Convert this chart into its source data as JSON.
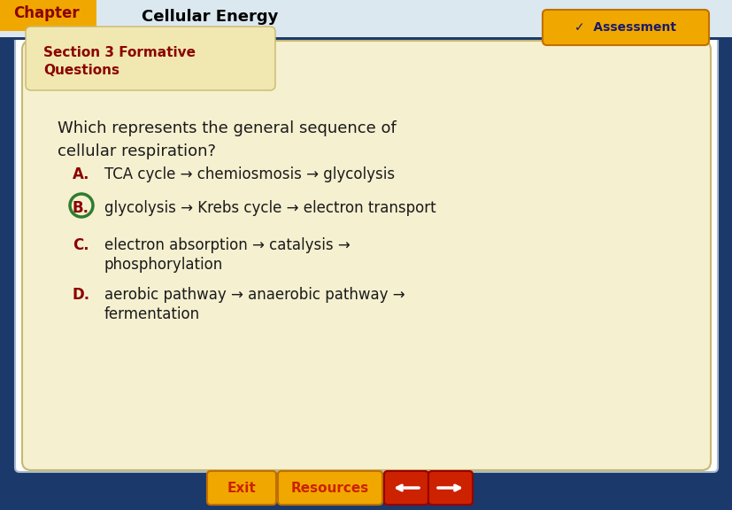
{
  "background_color": "#1b3a6b",
  "chapter_tab_color": "#f0a800",
  "chapter_tab_text": "Chapter",
  "chapter_tab_text_color": "#8b0000",
  "header_bg_color": "#dce8f0",
  "header_text": "Cellular Energy",
  "header_text_color": "#000000",
  "section_tab_color": "#f0e8b0",
  "section_tab_text_line1": "Section 3 Formative",
  "section_tab_text_line2": "Questions",
  "section_tab_text_color": "#8b0000",
  "main_card_color": "#f5f0d0",
  "main_card_edge_color": "#c8b870",
  "question_text_line1": "Which represents the general sequence of",
  "question_text_line2": "cellular respiration?",
  "question_text_color": "#1a1a1a",
  "options": [
    {
      "label": "A.",
      "text": "TCA cycle → chemiosmosis → glycolysis",
      "circled": false,
      "wrap": false
    },
    {
      "label": "B.",
      "text": "glycolysis → Krebs cycle → electron transport",
      "circled": true,
      "wrap": false
    },
    {
      "label": "C.",
      "text": "electron absorption → catalysis →",
      "text2": "phosphorylation",
      "circled": false,
      "wrap": true
    },
    {
      "label": "D.",
      "text": "aerobic pathway → anaerobic pathway →",
      "text2": "fermentation",
      "circled": false,
      "wrap": true
    }
  ],
  "option_label_color": "#8b0000",
  "option_text_color": "#1a1a1a",
  "circle_color": "#2e7d2e",
  "assessment_btn_color": "#f0a800",
  "assessment_text": "✓  Assessment",
  "assessment_text_color": "#1a1a6b",
  "exit_text": "Exit",
  "resources_text": "Resources",
  "btn_color": "#f0a800",
  "btn_text_color": "#cc2200",
  "arrow_color": "#cc2200"
}
